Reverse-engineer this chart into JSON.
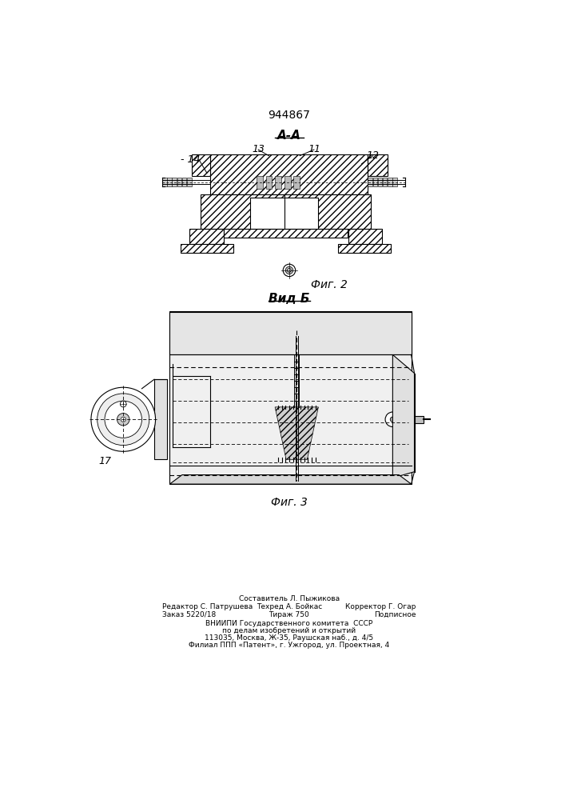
{
  "patent_number": "944867",
  "fig2_label": "А-А",
  "fig2_caption": "Фиг. 2",
  "fig3_caption": "Вид Б",
  "fig4_caption": "Фиг. 3",
  "footer_line1_center": "Составитель Л. Пыжикова",
  "footer_line1_left": "Редактор С. Патрушева",
  "footer_line1_right": "Корректор Г. Огар",
  "footer_line2_left": "Заказ 5220/18",
  "footer_line2_center": "Техред А. Бойкас",
  "footer_line2_right": "Подписное",
  "footer_line3_center": "Тираж 750",
  "footer_vnipi1": "ВНИИПИ Государственного комитета  СССР",
  "footer_vnipi2": "по делам изобретений и открытий",
  "footer_vnipi3": "113035, Москва, Ж-35, Раушская наб., д. 4/5",
  "footer_vnipi4": "Филиал ППП «Патент», г. Ужгород, ул. Проектная, 4",
  "bg_color": "#ffffff",
  "line_color": "#000000"
}
